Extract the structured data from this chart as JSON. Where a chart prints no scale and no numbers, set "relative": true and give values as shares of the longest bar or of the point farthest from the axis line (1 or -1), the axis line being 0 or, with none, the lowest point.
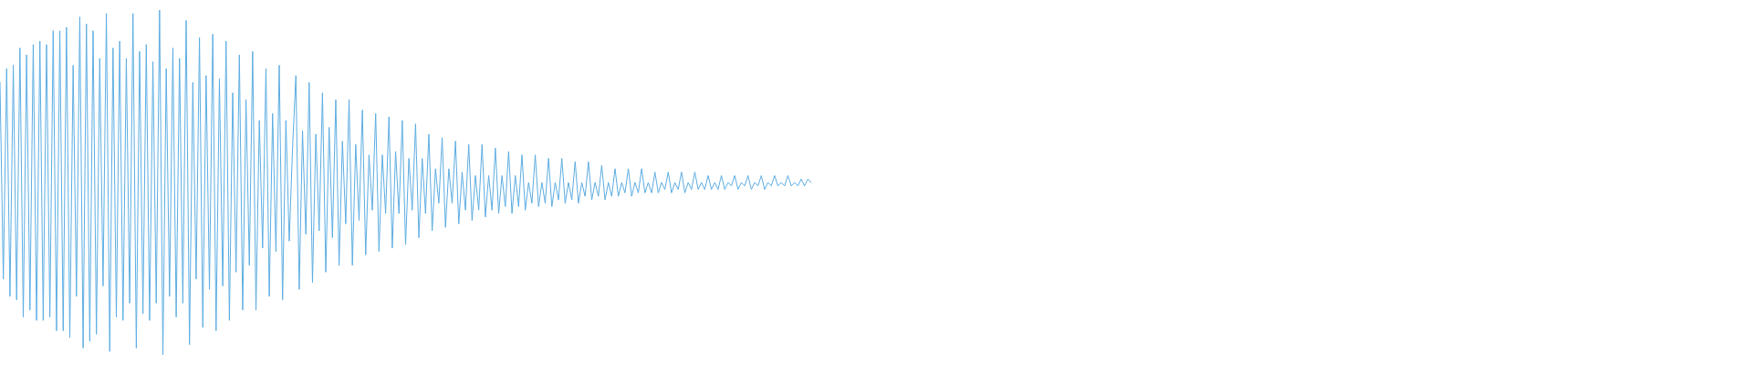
{
  "chart_data": {
    "type": "line",
    "relative": true,
    "tick_labels": false,
    "marker": "none",
    "line_style": "solid",
    "color": "#5dade2",
    "categories": [
      null,
      null,
      null,
      null,
      null,
      null,
      null,
      null,
      null,
      null,
      null,
      null,
      null,
      null,
      null,
      null,
      null,
      null,
      null,
      null,
      null,
      null,
      null,
      null,
      null,
      null,
      null,
      null,
      null,
      null,
      null,
      null,
      null,
      null,
      null,
      null,
      null,
      null,
      null,
      null,
      null,
      null,
      null,
      null,
      null,
      null,
      null,
      null,
      null,
      null,
      null,
      null,
      null,
      null,
      null,
      null,
      null,
      null,
      null,
      null,
      null,
      null,
      null,
      null,
      null,
      null,
      null,
      null,
      null,
      null,
      null,
      null,
      null,
      null,
      null,
      null,
      null,
      null,
      null,
      null,
      null,
      null,
      null,
      null,
      null,
      null,
      null,
      null,
      null,
      null,
      null,
      null,
      null,
      null,
      null,
      null,
      null,
      null,
      null,
      null,
      null,
      null,
      null,
      null,
      null,
      null,
      null,
      null,
      null,
      null,
      null,
      null,
      null,
      null,
      null,
      null,
      null,
      null,
      null,
      null,
      null,
      null,
      null,
      null,
      null,
      null,
      null,
      null,
      null,
      null,
      null,
      null,
      null,
      null,
      null,
      null,
      null,
      null,
      null,
      null,
      null,
      null,
      null,
      null,
      null,
      null,
      null,
      null,
      null,
      null,
      null,
      null,
      null,
      null,
      null,
      null,
      null,
      null,
      null,
      null,
      null,
      null,
      null,
      null,
      null,
      null,
      null,
      null,
      null,
      null,
      null,
      null,
      null,
      null,
      null,
      null,
      null,
      null,
      null,
      null,
      null,
      null,
      null,
      null,
      null,
      null,
      null,
      null,
      null,
      null,
      null,
      null,
      null,
      null,
      null,
      null,
      null,
      null,
      null,
      null,
      null,
      null,
      null,
      null,
      null,
      null,
      null,
      null,
      null,
      null,
      null,
      null,
      null,
      null,
      null,
      null,
      null,
      null,
      null,
      null,
      null,
      null,
      null,
      null,
      null,
      null,
      null,
      null,
      null,
      null,
      null,
      null,
      null,
      null,
      null,
      null,
      null,
      null,
      null,
      null,
      null,
      null,
      null,
      null,
      null,
      null,
      null,
      null,
      null,
      null,
      null,
      null,
      null,
      null,
      null,
      null,
      null,
      null,
      null,
      null,
      null,
      null,
      null,
      null,
      null,
      null,
      null,
      null,
      null,
      null,
      null,
      null,
      null,
      null,
      null,
      null,
      null,
      null,
      null,
      null,
      null,
      null,
      null,
      null,
      null,
      null,
      null,
      null,
      null,
      null,
      null,
      null,
      null,
      null,
      null,
      null,
      null,
      null,
      null,
      null,
      null,
      null,
      null,
      null,
      null,
      null,
      null,
      null,
      null,
      null,
      null,
      null,
      null,
      null,
      null,
      null,
      null,
      null,
      null,
      null,
      null,
      null,
      null,
      null,
      null,
      null,
      null,
      null,
      null,
      null,
      null,
      null,
      null,
      null,
      null,
      null,
      null,
      null,
      null,
      null,
      null,
      null,
      null,
      null,
      null,
      null,
      null,
      null,
      null,
      null,
      null,
      null,
      null,
      null,
      null,
      null,
      null,
      null,
      null,
      null,
      null,
      null,
      null,
      null,
      null,
      null,
      null,
      null,
      null,
      null,
      null,
      null,
      null,
      null,
      null,
      null,
      null,
      null,
      null,
      null,
      null,
      null,
      null,
      null,
      null,
      null,
      null,
      null,
      null,
      null,
      null,
      null,
      null,
      null,
      null,
      null,
      null,
      null,
      null,
      null,
      null,
      null,
      null,
      null,
      null,
      null,
      null,
      null,
      null,
      null,
      null,
      null,
      null,
      null,
      null,
      null,
      null,
      null,
      null,
      null,
      null,
      null,
      null,
      null,
      null,
      null,
      null,
      null,
      null,
      null,
      null,
      null,
      null,
      null,
      null,
      null,
      null,
      null,
      null,
      null,
      null,
      null,
      null,
      null,
      null,
      null,
      null,
      null,
      null,
      null,
      null,
      null,
      null,
      null,
      null,
      null,
      null,
      null,
      null,
      null,
      null,
      null,
      null,
      null,
      null,
      null,
      null,
      null,
      null,
      null,
      null,
      null,
      null,
      null,
      null,
      null,
      null,
      null,
      null,
      null,
      null,
      null,
      null,
      null,
      null,
      null,
      null,
      null,
      null,
      null,
      null,
      null,
      null,
      null,
      null,
      null,
      null,
      null,
      null,
      null,
      null,
      null,
      null,
      null,
      null,
      null,
      null,
      null,
      null,
      null,
      null,
      null,
      null,
      null,
      null,
      null,
      null,
      null,
      null,
      null,
      null,
      null,
      null,
      null,
      null,
      null,
      null,
      null
    ],
    "values": [
      0.79,
      0.22,
      0.83,
      0.17,
      0.84,
      0.16,
      0.89,
      0.11,
      0.87,
      0.13,
      0.9,
      0.1,
      0.91,
      0.1,
      0.9,
      0.11,
      0.94,
      0.07,
      0.94,
      0.07,
      0.95,
      0.05,
      0.84,
      0.17,
      0.98,
      0.02,
      0.96,
      0.04,
      0.94,
      0.06,
      0.86,
      0.2,
      0.99,
      0.01,
      0.89,
      0.11,
      0.91,
      0.1,
      0.86,
      0.15,
      0.99,
      0.02,
      0.88,
      0.12,
      0.9,
      0.1,
      0.85,
      0.15,
      1,
      0,
      0.83,
      0.17,
      0.89,
      0.11,
      0.86,
      0.15,
      0.97,
      0.03,
      0.79,
      0.22,
      0.92,
      0.08,
      0.81,
      0.19,
      0.93,
      0.07,
      0.8,
      0.2,
      0.91,
      0.1,
      0.76,
      0.24,
      0.87,
      0.13,
      0.74,
      0.26,
      0.88,
      0.13,
      0.68,
      0.31,
      0.83,
      0.17,
      0.7,
      0.3,
      0.84,
      0.16,
      0.68,
      0.33,
      0.6,
      0.81,
      0.19,
      0.65,
      0.35,
      0.79,
      0.21,
      0.64,
      0.36,
      0.76,
      0.24,
      0.66,
      0.34,
      0.74,
      0.26,
      0.62,
      0.38,
      0.74,
      0.26,
      0.61,
      0.39,
      0.71,
      0.29,
      0.58,
      0.42,
      0.7,
      0.3,
      0.58,
      0.41,
      0.69,
      0.31,
      0.59,
      0.41,
      0.68,
      0.32,
      0.57,
      0.42,
      0.67,
      0.34,
      0.57,
      0.41,
      0.64,
      0.36,
      0.54,
      0.44,
      0.63,
      0.37,
      0.54,
      0.44,
      0.62,
      0.38,
      0.53,
      0.42,
      0.61,
      0.39,
      0.52,
      0.42,
      0.61,
      0.4,
      0.52,
      0.42,
      0.6,
      0.41,
      0.52,
      0.43,
      0.59,
      0.41,
      0.52,
      0.43,
      0.58,
      0.42,
      0.5,
      0.44,
      0.58,
      0.43,
      0.5,
      0.44,
      0.57,
      0.43,
      0.5,
      0.45,
      0.57,
      0.44,
      0.5,
      0.45,
      0.56,
      0.44,
      0.5,
      0.46,
      0.56,
      0.45,
      0.5,
      0.46,
      0.55,
      0.45,
      0.5,
      0.46,
      0.54,
      0.46,
      0.5,
      0.47,
      0.54,
      0.46,
      0.5,
      0.47,
      0.54,
      0.47,
      0.5,
      0.47,
      0.53,
      0.47,
      0.5,
      0.48,
      0.53,
      0.47,
      0.5,
      0.48,
      0.53,
      0.47,
      0.5,
      0.48,
      0.53,
      0.48,
      0.5,
      0.48,
      0.52,
      0.48,
      0.5,
      0.48,
      0.52,
      0.48,
      0.5,
      0.49,
      0.52,
      0.48,
      0.5,
      0.49,
      0.52,
      0.48,
      0.5,
      0.49,
      0.52,
      0.48,
      0.5,
      0.49,
      0.52,
      0.49,
      0.5,
      0.49,
      0.52,
      0.49,
      0.5,
      0.49,
      0.51,
      0.49,
      0.51,
      0.5,
      null,
      null,
      null,
      null,
      null,
      null,
      null,
      null,
      null,
      null,
      null,
      null,
      null,
      null,
      null,
      null,
      null,
      null,
      null,
      null,
      null,
      null,
      null,
      null,
      null,
      null,
      null,
      null,
      null,
      null,
      null,
      null,
      null,
      null,
      null,
      null,
      null,
      null,
      null,
      null,
      null,
      null,
      null,
      null,
      null,
      null,
      null,
      null,
      null,
      null,
      null,
      null,
      null,
      null,
      null,
      null,
      null,
      null,
      null,
      null,
      null,
      null,
      null,
      null,
      null,
      null,
      null,
      null,
      null,
      null,
      null,
      null,
      null,
      null,
      null,
      null,
      null,
      null,
      null,
      null,
      null,
      null,
      null,
      null,
      null,
      null,
      null,
      null,
      null,
      null,
      null,
      null,
      null,
      null,
      null,
      null,
      null,
      null,
      null,
      null,
      null,
      null,
      null,
      null,
      null,
      null,
      null,
      null,
      null,
      null,
      null,
      null,
      null,
      null,
      null,
      null,
      null,
      null,
      null,
      null,
      null,
      null,
      null,
      null,
      null,
      null,
      null,
      null,
      null,
      null,
      null,
      null,
      null,
      null,
      null,
      null,
      null,
      null,
      null,
      null,
      null,
      null,
      null,
      null,
      null,
      null,
      null,
      null,
      null,
      null,
      null,
      null,
      null,
      null,
      null,
      null,
      null,
      null,
      null,
      null,
      null,
      null,
      null,
      null,
      null,
      null,
      null,
      null,
      null,
      null,
      null,
      null,
      null,
      null,
      null,
      null,
      null,
      null,
      null,
      null,
      null,
      null,
      null,
      null,
      null,
      null,
      null,
      null,
      null,
      null,
      null,
      null,
      null,
      null,
      null,
      null,
      null,
      null,
      null,
      null,
      null,
      null,
      null,
      null,
      null,
      null,
      null,
      null,
      null,
      null,
      null,
      null,
      null,
      null,
      null,
      null,
      null,
      null,
      null,
      null,
      null,
      null,
      null,
      null,
      null,
      null,
      null,
      null,
      null,
      null,
      null,
      null,
      null,
      null,
      null,
      null,
      null,
      null,
      null,
      null,
      null,
      null,
      null,
      null,
      null,
      null,
      null,
      null,
      null,
      null,
      null,
      null,
      null,
      null,
      null,
      null,
      null,
      null,
      null,
      null,
      null,
      null,
      null,
      null,
      null,
      null,
      null,
      null,
      null,
      null,
      null,
      null,
      null,
      null,
      null,
      null,
      null,
      null,
      null,
      null,
      null,
      null,
      null
    ]
  }
}
